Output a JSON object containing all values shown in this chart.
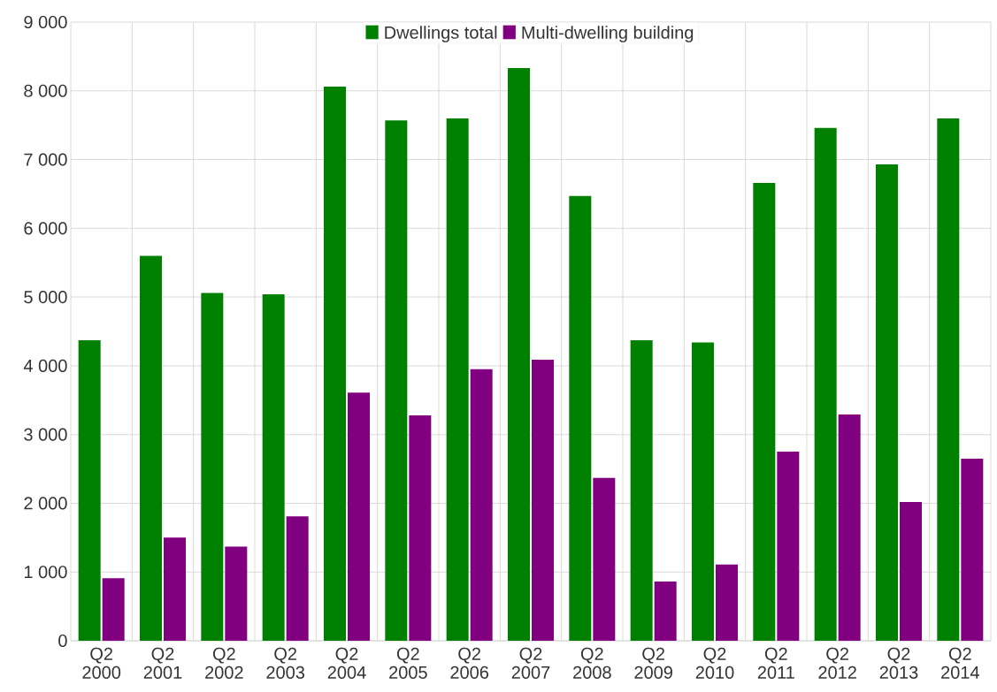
{
  "chart_data": {
    "type": "bar",
    "categories": [
      "Q2 2000",
      "Q2 2001",
      "Q2 2002",
      "Q2 2003",
      "Q2 2004",
      "Q2 2005",
      "Q2 2006",
      "Q2 2007",
      "Q2 2008",
      "Q2 2009",
      "Q2 2010",
      "Q2 2011",
      "Q2 2012",
      "Q2 2013",
      "Q2 2014"
    ],
    "series": [
      {
        "name": "Dwellings total",
        "color": "#008000",
        "values": [
          4370,
          5600,
          5060,
          5040,
          8060,
          7570,
          7600,
          8330,
          6470,
          4370,
          4340,
          6660,
          7460,
          6930,
          7600
        ]
      },
      {
        "name": "Multi-dwelling building",
        "color": "#800080",
        "values": [
          910,
          1500,
          1370,
          1810,
          3610,
          3280,
          3950,
          4090,
          2370,
          860,
          1110,
          2750,
          3290,
          2020,
          2650
        ]
      }
    ],
    "ylim": [
      0,
      9000
    ],
    "yticks": [
      0,
      {
        "value": 1000,
        "label": "1 000"
      },
      {
        "value": 2000,
        "label": "2 000"
      },
      {
        "value": 3000,
        "label": "3 000"
      },
      {
        "value": 4000,
        "label": "4 000"
      },
      {
        "value": 5000,
        "label": "5 000"
      },
      {
        "value": 6000,
        "label": "6 000"
      },
      {
        "value": 7000,
        "label": "7 000"
      },
      {
        "value": 8000,
        "label": "8 000"
      },
      {
        "value": 9000,
        "label": "9 000"
      }
    ],
    "grid": true,
    "legend": "top"
  }
}
